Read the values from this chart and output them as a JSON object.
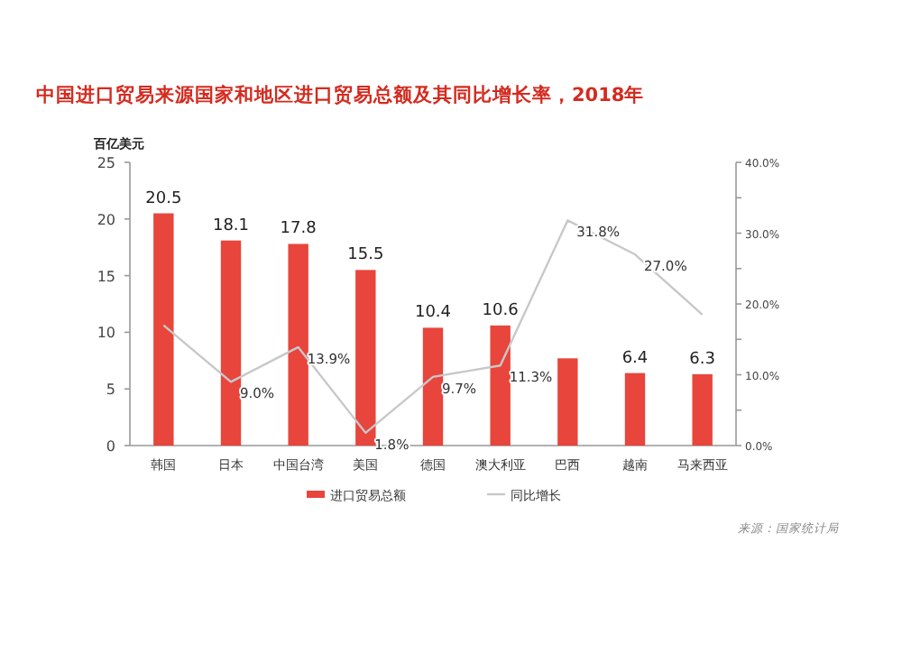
{
  "chart_data": {
    "type": "bar",
    "title": "中国进口贸易来源国家和地区进口贸易总额及其同比增长率，2018年",
    "ylabel": "百亿美元",
    "categories": [
      "韩国",
      "日本",
      "中国台湾",
      "美国",
      "德国",
      "澳大利亚",
      "巴西",
      "越南",
      "马来西亚"
    ],
    "series": [
      {
        "name": "进口贸易总额",
        "color": "#e8453c",
        "values": [
          20.5,
          18.1,
          17.8,
          15.5,
          10.4,
          10.6,
          7.7,
          6.4,
          6.3
        ],
        "value_labels": [
          "20.5",
          "18.1",
          "17.8",
          "15.5",
          "10.4",
          "10.6",
          null,
          "6.4",
          "6.3"
        ]
      },
      {
        "name": "同比增长",
        "type": "line",
        "axis": "y2",
        "color": "#c8c8c8",
        "values": [
          17.0,
          9.0,
          13.9,
          1.8,
          9.7,
          11.3,
          31.8,
          27.0,
          18.5
        ],
        "value_labels": [
          null,
          "9.0%",
          "13.9%",
          "1.8%",
          "9.7%",
          "11.3%",
          "31.8%",
          "27.0%",
          null
        ]
      }
    ],
    "ylim": [
      0,
      25
    ],
    "yticks": [
      0,
      5,
      10,
      15,
      20,
      25
    ],
    "y2lim": [
      0,
      40
    ],
    "y2ticks": [
      {
        "value": 0,
        "label": "0.0%"
      },
      {
        "value": 5,
        "label": null
      },
      {
        "value": 10,
        "label": "10.0%"
      },
      {
        "value": 15,
        "label": null
      },
      {
        "value": 20,
        "label": "20.0%"
      },
      {
        "value": 25,
        "label": null
      },
      {
        "value": 30,
        "label": "30.0%"
      },
      {
        "value": 35,
        "label": null
      },
      {
        "value": 40,
        "label": "40.0%"
      }
    ],
    "legend": "bottom",
    "grid": false,
    "annotations": [
      "来源：国家统计局"
    ]
  }
}
